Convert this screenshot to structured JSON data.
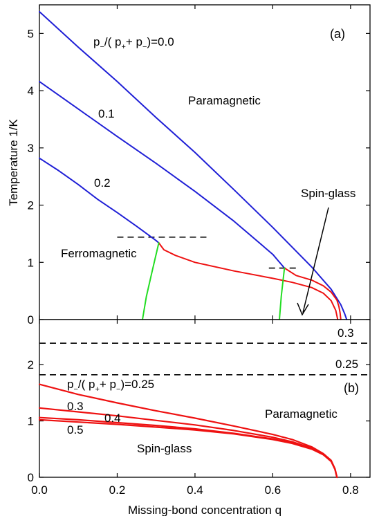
{
  "chart_data": [
    {
      "panel": "(a)",
      "type": "line",
      "xlabel": "Missing-bond concentration q",
      "ylabel": "Temperature 1/K",
      "xlim": [
        0.0,
        0.85
      ],
      "ylim": [
        0.0,
        5.5
      ],
      "xticks": [
        "0.0",
        "0.2",
        "0.4",
        "0.6",
        "0.8"
      ],
      "yticks": [
        "0",
        "1",
        "2",
        "3",
        "4",
        "5"
      ],
      "annotations": {
        "legend_prefix": "p",
        "legend_minus": "−",
        "legend_open": "/( p",
        "legend_plus": "+",
        "legend_mid": "+ p",
        "legend_close": ")=0.0",
        "label_01": "0.1",
        "label_02": "0.2",
        "paramagnetic": "Paramagnetic",
        "ferromagnetic": "Ferromagnetic",
        "spin_glass": "Spin-glass",
        "panel_tag": "(a)"
      },
      "series": [
        {
          "label": "0.0",
          "color": "#1f1fd6",
          "x": [
            0.0,
            0.1,
            0.2,
            0.3,
            0.4,
            0.5,
            0.6,
            0.7,
            0.75,
            0.775,
            0.785,
            0.79
          ],
          "y": [
            5.38,
            4.76,
            4.16,
            3.53,
            2.92,
            2.27,
            1.61,
            0.92,
            0.53,
            0.26,
            0.1,
            0.0
          ]
        },
        {
          "label": "0.1",
          "color": "#1f1fd6",
          "x": [
            0.0,
            0.1,
            0.2,
            0.3,
            0.4,
            0.5,
            0.6,
            0.615,
            0.63
          ],
          "y": [
            4.16,
            3.68,
            3.2,
            2.73,
            2.24,
            1.72,
            1.14,
            1.02,
            0.9
          ]
        },
        {
          "label": "0.2",
          "color": "#1f1fd6",
          "x": [
            0.0,
            0.05,
            0.1,
            0.15,
            0.2,
            0.25,
            0.28,
            0.3,
            0.307
          ],
          "y": [
            2.82,
            2.6,
            2.36,
            2.1,
            1.87,
            1.63,
            1.48,
            1.38,
            1.34
          ]
        },
        {
          "label": "spin-glass 0.1",
          "color": "#ee1111",
          "x": [
            0.63,
            0.66,
            0.7,
            0.73,
            0.75,
            0.765,
            0.77,
            0.773,
            0.775
          ],
          "y": [
            0.9,
            0.77,
            0.69,
            0.59,
            0.48,
            0.34,
            0.23,
            0.12,
            0.0
          ]
        },
        {
          "label": "spin-glass 0.2",
          "color": "#ee1111",
          "x": [
            0.307,
            0.32,
            0.35,
            0.4,
            0.5,
            0.6,
            0.65,
            0.7,
            0.73,
            0.75,
            0.762,
            0.767
          ],
          "y": [
            1.34,
            1.22,
            1.12,
            1.0,
            0.85,
            0.72,
            0.65,
            0.56,
            0.46,
            0.33,
            0.16,
            0.0
          ]
        },
        {
          "label": "F-SG boundary 0.2",
          "color": "#22dd22",
          "x": [
            0.265,
            0.275,
            0.29,
            0.307
          ],
          "y": [
            0.0,
            0.4,
            0.85,
            1.34
          ]
        },
        {
          "label": "F-SG boundary 0.1",
          "color": "#22dd22",
          "x": [
            0.617,
            0.622,
            0.63
          ],
          "y": [
            0.0,
            0.42,
            0.9
          ]
        }
      ],
      "hlines": [
        {
          "y": 1.44,
          "x": [
            0.2,
            0.44
          ]
        },
        {
          "y": 0.9,
          "x": [
            0.59,
            0.66
          ]
        }
      ]
    },
    {
      "panel": "(b)",
      "type": "line",
      "xlim": [
        0.0,
        0.85
      ],
      "ylim": [
        0.0,
        2.8
      ],
      "xticks": [
        "0.0",
        "0.2",
        "0.4",
        "0.6",
        "0.8"
      ],
      "yticks": [
        "0",
        "1",
        "2"
      ],
      "annotations": {
        "legend_prefix": "p",
        "legend_minus": "−",
        "legend_open": "/( p",
        "legend_plus": "+",
        "legend_mid": "+ p",
        "legend_close": ")=0.25",
        "label_03": "0.3",
        "label_04": "0.4",
        "label_05": "0.5",
        "hline_03": "0.3",
        "hline_025": "0.25",
        "paramagnetic": "Paramagnetic",
        "spin_glass": "Spin-glass",
        "panel_tag": "(b)"
      },
      "series": [
        {
          "label": "0.25",
          "color": "#ee1111",
          "x": [
            0.0,
            0.1,
            0.2,
            0.3,
            0.4,
            0.5,
            0.6,
            0.65,
            0.7,
            0.73,
            0.75,
            0.76,
            0.765
          ],
          "y": [
            1.65,
            1.47,
            1.32,
            1.18,
            1.05,
            0.91,
            0.76,
            0.67,
            0.54,
            0.42,
            0.3,
            0.15,
            0.0
          ]
        },
        {
          "label": "0.3",
          "color": "#ee1111",
          "x": [
            0.0,
            0.1,
            0.2,
            0.3,
            0.4,
            0.5,
            0.6,
            0.65,
            0.7,
            0.73,
            0.75,
            0.76,
            0.765
          ],
          "y": [
            1.23,
            1.16,
            1.09,
            1.01,
            0.93,
            0.83,
            0.71,
            0.63,
            0.52,
            0.41,
            0.29,
            0.14,
            0.0
          ]
        },
        {
          "label": "0.4",
          "color": "#ee1111",
          "x": [
            0.0,
            0.1,
            0.2,
            0.3,
            0.4,
            0.5,
            0.6,
            0.65,
            0.7,
            0.73,
            0.75,
            0.76,
            0.765
          ],
          "y": [
            1.06,
            1.02,
            0.97,
            0.92,
            0.86,
            0.78,
            0.68,
            0.61,
            0.51,
            0.4,
            0.29,
            0.14,
            0.0
          ]
        },
        {
          "label": "0.5",
          "color": "#ee1111",
          "x": [
            0.0,
            0.1,
            0.2,
            0.3,
            0.4,
            0.5,
            0.6,
            0.65,
            0.7,
            0.73,
            0.75,
            0.76,
            0.765
          ],
          "y": [
            1.02,
            0.98,
            0.94,
            0.89,
            0.84,
            0.77,
            0.67,
            0.6,
            0.5,
            0.4,
            0.28,
            0.14,
            0.0
          ]
        }
      ],
      "hlines": [
        {
          "y": 2.38,
          "x": [
            0.0,
            0.85
          ]
        },
        {
          "y": 1.82,
          "x": [
            0.0,
            0.85
          ]
        }
      ]
    }
  ]
}
